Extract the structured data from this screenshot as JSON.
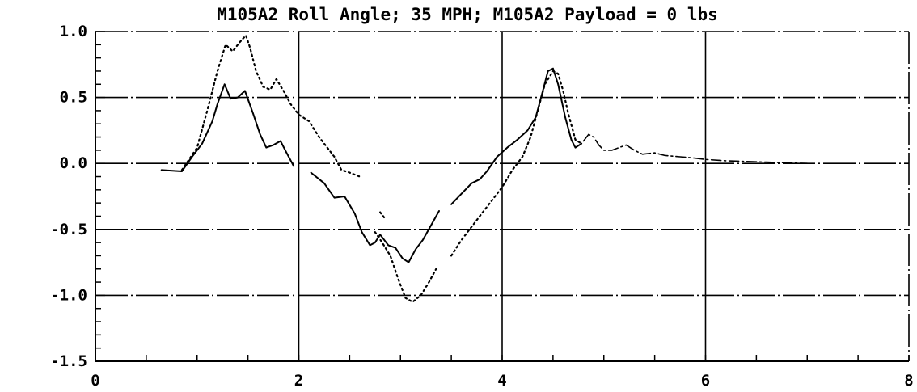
{
  "chart_data": {
    "type": "line",
    "title": "M105A2 Roll Angle; 35 MPH; M105A2 Payload = 0 lbs",
    "xlabel": "",
    "ylabel": "",
    "xlim": [
      0,
      8
    ],
    "ylim": [
      -1.5,
      1.0
    ],
    "x_ticks": [
      0,
      2,
      4,
      6,
      8
    ],
    "x_tick_labels": [
      "0",
      "2",
      "4",
      "6",
      "8"
    ],
    "y_ticks": [
      1.0,
      0.5,
      0.0,
      -0.5,
      -1.0,
      -1.5
    ],
    "y_tick_labels": [
      "1.0",
      "0.5",
      "0.0",
      "-0.5",
      "-1.0",
      "-1.5"
    ],
    "grid": true,
    "legend": "none",
    "series": [
      {
        "style": "solid",
        "color": "#000000",
        "segments": [
          [
            [
              0.65,
              -0.05
            ],
            [
              0.85,
              -0.06
            ],
            [
              0.95,
              0.05
            ],
            [
              1.05,
              0.15
            ],
            [
              1.15,
              0.32
            ],
            [
              1.2,
              0.45
            ],
            [
              1.27,
              0.6
            ],
            [
              1.33,
              0.49
            ],
            [
              1.4,
              0.5
            ],
            [
              1.47,
              0.55
            ],
            [
              1.55,
              0.38
            ],
            [
              1.62,
              0.22
            ],
            [
              1.68,
              0.12
            ],
            [
              1.75,
              0.14
            ],
            [
              1.82,
              0.17
            ],
            [
              1.88,
              0.08
            ],
            [
              1.95,
              -0.02
            ]
          ],
          [
            [
              2.12,
              -0.07
            ],
            [
              2.25,
              -0.15
            ],
            [
              2.35,
              -0.26
            ],
            [
              2.45,
              -0.25
            ],
            [
              2.55,
              -0.38
            ],
            [
              2.62,
              -0.52
            ],
            [
              2.7,
              -0.62
            ],
            [
              2.75,
              -0.6
            ],
            [
              2.8,
              -0.54
            ],
            [
              2.88,
              -0.62
            ],
            [
              2.95,
              -0.64
            ],
            [
              3.02,
              -0.72
            ],
            [
              3.08,
              -0.75
            ],
            [
              3.15,
              -0.65
            ],
            [
              3.22,
              -0.58
            ],
            [
              3.3,
              -0.47
            ],
            [
              3.38,
              -0.36
            ]
          ],
          [
            [
              3.5,
              -0.31
            ],
            [
              3.6,
              -0.23
            ],
            [
              3.7,
              -0.15
            ],
            [
              3.78,
              -0.12
            ],
            [
              3.85,
              -0.06
            ],
            [
              3.95,
              0.05
            ],
            [
              4.05,
              0.12
            ],
            [
              4.15,
              0.18
            ],
            [
              4.25,
              0.25
            ],
            [
              4.33,
              0.35
            ],
            [
              4.4,
              0.55
            ],
            [
              4.45,
              0.7
            ],
            [
              4.5,
              0.72
            ],
            [
              4.55,
              0.6
            ],
            [
              4.62,
              0.35
            ],
            [
              4.68,
              0.18
            ],
            [
              4.72,
              0.12
            ],
            [
              4.78,
              0.15
            ]
          ]
        ]
      },
      {
        "style": "dotted",
        "color": "#000000",
        "segments": [
          [
            [
              0.85,
              -0.05
            ],
            [
              1.0,
              0.12
            ],
            [
              1.1,
              0.4
            ],
            [
              1.2,
              0.7
            ],
            [
              1.28,
              0.9
            ],
            [
              1.35,
              0.85
            ],
            [
              1.42,
              0.92
            ],
            [
              1.48,
              0.97
            ],
            [
              1.52,
              0.88
            ],
            [
              1.58,
              0.7
            ],
            [
              1.65,
              0.58
            ],
            [
              1.72,
              0.56
            ],
            [
              1.78,
              0.64
            ],
            [
              1.85,
              0.55
            ],
            [
              1.92,
              0.45
            ],
            [
              2.0,
              0.37
            ],
            [
              2.1,
              0.32
            ],
            [
              2.2,
              0.2
            ],
            [
              2.28,
              0.12
            ],
            [
              2.35,
              0.05
            ],
            [
              2.42,
              -0.05
            ],
            [
              2.5,
              -0.07
            ],
            [
              2.6,
              -0.1
            ]
          ],
          [
            [
              2.8,
              -0.37
            ],
            [
              2.85,
              -0.42
            ]
          ],
          [
            [
              2.75,
              -0.52
            ],
            [
              2.82,
              -0.6
            ],
            [
              2.9,
              -0.7
            ],
            [
              2.98,
              -0.88
            ],
            [
              3.05,
              -1.02
            ],
            [
              3.12,
              -1.05
            ],
            [
              3.2,
              -1.0
            ],
            [
              3.28,
              -0.9
            ],
            [
              3.35,
              -0.8
            ]
          ],
          [
            [
              3.5,
              -0.7
            ],
            [
              3.6,
              -0.58
            ],
            [
              3.7,
              -0.48
            ],
            [
              3.8,
              -0.38
            ],
            [
              3.9,
              -0.28
            ],
            [
              4.0,
              -0.18
            ],
            [
              4.1,
              -0.05
            ],
            [
              4.2,
              0.05
            ],
            [
              4.28,
              0.2
            ],
            [
              4.35,
              0.4
            ],
            [
              4.42,
              0.6
            ],
            [
              4.5,
              0.7
            ],
            [
              4.55,
              0.68
            ],
            [
              4.6,
              0.55
            ],
            [
              4.65,
              0.38
            ],
            [
              4.72,
              0.18
            ],
            [
              4.78,
              0.15
            ]
          ]
        ]
      },
      {
        "style": "dashdot",
        "color": "#000000",
        "segments": [
          [
            [
              4.8,
              0.17
            ],
            [
              4.85,
              0.22
            ],
            [
              4.9,
              0.2
            ],
            [
              4.95,
              0.14
            ],
            [
              5.0,
              0.1
            ],
            [
              5.08,
              0.1
            ],
            [
              5.15,
              0.12
            ],
            [
              5.22,
              0.14
            ],
            [
              5.3,
              0.1
            ],
            [
              5.38,
              0.07
            ],
            [
              5.5,
              0.08
            ],
            [
              5.6,
              0.06
            ],
            [
              5.75,
              0.05
            ],
            [
              5.9,
              0.04
            ],
            [
              6.0,
              0.03
            ],
            [
              6.2,
              0.02
            ],
            [
              6.6,
              0.01
            ],
            [
              7.0,
              0.0
            ]
          ]
        ]
      }
    ]
  }
}
